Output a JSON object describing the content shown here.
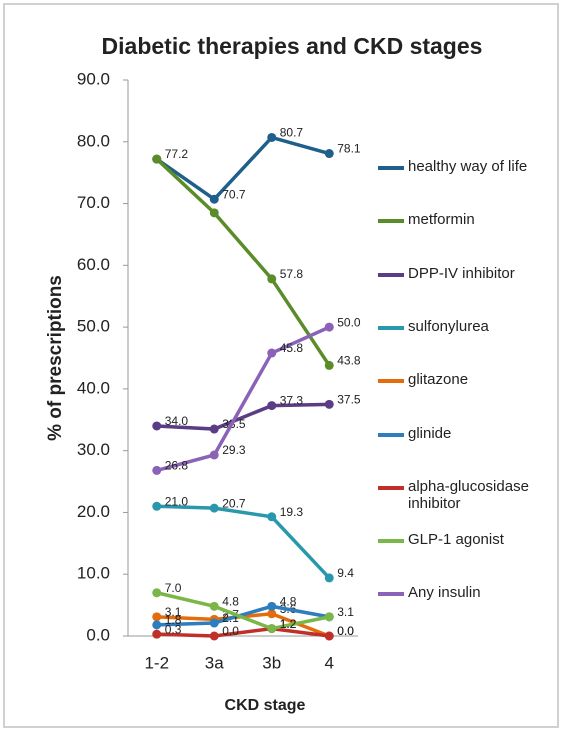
{
  "chart_data": {
    "type": "line",
    "title": "Diabetic therapies and CKD stages",
    "x_label": "CKD stage",
    "y_label": "% of prescriptions",
    "categories": [
      "1-2",
      "3a",
      "3b",
      "4"
    ],
    "ylim": [
      0,
      90
    ],
    "yticks": [
      {
        "value": 0,
        "label": "0.0"
      },
      {
        "value": 10,
        "label": "10.0"
      },
      {
        "value": 20,
        "label": "20.0"
      },
      {
        "value": 30,
        "label": "30.0"
      },
      {
        "value": 40,
        "label": "40.0"
      },
      {
        "value": 50,
        "label": "50.0"
      },
      {
        "value": 60,
        "label": "60.0"
      },
      {
        "value": 70,
        "label": "70.0"
      },
      {
        "value": 80,
        "label": "80.0"
      },
      {
        "value": 90,
        "label": "90.0"
      }
    ],
    "grid": false,
    "legend": "right",
    "series": [
      {
        "name": "healthy way of life",
        "color": "#1f5f8b",
        "values": [
          77.2,
          70.7,
          80.7,
          78.1
        ],
        "value_labels": [
          "77.2",
          "70.7",
          "80.7",
          "78.1"
        ]
      },
      {
        "name": "metformin",
        "color": "#5b8c2a",
        "values": [
          77.2,
          68.5,
          57.8,
          43.8
        ],
        "value_labels": [
          null,
          null,
          "57.8",
          "43.8"
        ]
      },
      {
        "name": "DPP-IV inhibitor",
        "color": "#5b3d86",
        "values": [
          34.0,
          33.5,
          37.3,
          37.5
        ],
        "value_labels": [
          "34.0",
          "33.5",
          "37.3",
          "37.5"
        ]
      },
      {
        "name": "sulfonylurea",
        "color": "#2a98ac",
        "values": [
          21.0,
          20.7,
          19.3,
          9.4
        ],
        "value_labels": [
          "21.0",
          "20.7",
          "19.3",
          "9.4"
        ]
      },
      {
        "name": "glitazone",
        "color": "#e46c0a",
        "values": [
          3.1,
          2.7,
          3.6,
          0.0
        ],
        "value_labels": [
          "3.1",
          "2.7",
          "3.6",
          "0.0"
        ]
      },
      {
        "name": "glinide",
        "color": "#2e7dbf",
        "values": [
          1.8,
          2.1,
          4.8,
          3.1
        ],
        "value_labels": [
          "1.8",
          "2.1",
          "4.8",
          "3.1"
        ]
      },
      {
        "name": "alpha-glucosidase inhibitor",
        "color": "#c0302a",
        "values": [
          0.3,
          0.0,
          1.2,
          0.0
        ],
        "value_labels": [
          "0.3",
          "0.0",
          "1.2",
          "0.0"
        ]
      },
      {
        "name": "GLP-1 agonist",
        "color": "#7ab648",
        "values": [
          7.0,
          4.8,
          1.2,
          3.1
        ],
        "value_labels": [
          "7.0",
          "4.8",
          "1.2",
          null
        ]
      },
      {
        "name": "Any insulin",
        "color": "#8a63b8",
        "values": [
          26.8,
          29.3,
          45.8,
          50.0
        ],
        "value_labels": [
          "26.8",
          "29.3",
          "45.8",
          "50.0"
        ]
      }
    ]
  }
}
